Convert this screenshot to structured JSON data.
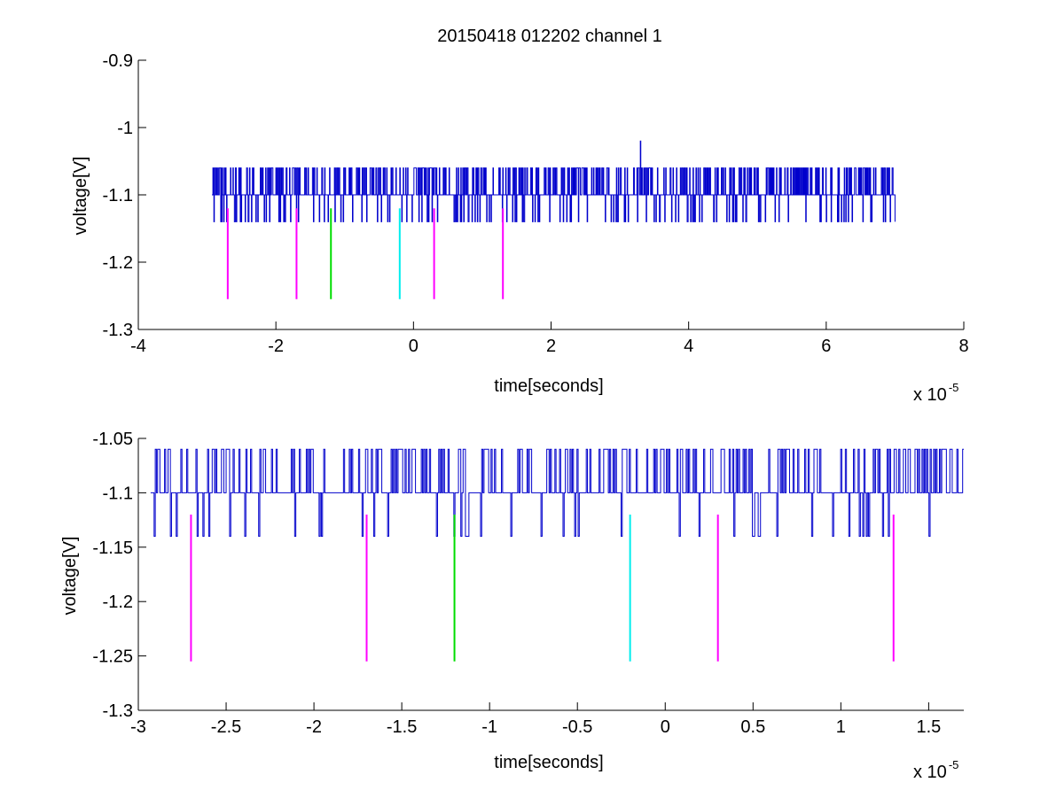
{
  "title": "20150418 012202 channel 1",
  "colors": {
    "trace": "#0000cc",
    "axis": "#000000",
    "magenta": "#ff00ff",
    "green": "#00dd00",
    "cyan": "#00eeee"
  },
  "chart_data": [
    {
      "type": "line",
      "xlabel": "time[seconds]",
      "ylabel": "voltage[V]",
      "xlim": [
        -4,
        8
      ],
      "ylim": [
        -1.3,
        -0.9
      ],
      "x_ticks": [
        -4,
        -2,
        0,
        2,
        4,
        6,
        8
      ],
      "x_tick_labels": [
        "-4",
        "-2",
        "0",
        "2",
        "4",
        "6",
        "8"
      ],
      "y_ticks": [
        -1.3,
        -1.2,
        -1.1,
        -1.0,
        -0.9
      ],
      "y_tick_labels": [
        "-1.3",
        "-1.2",
        "-1.1",
        "-1",
        "-0.9"
      ],
      "x_multiplier": {
        "base": "x 10",
        "exponent": "-5"
      },
      "trace": {
        "x_range": [
          -2.93,
          7.0
        ],
        "baseline": -1.1,
        "levels": [
          -1.06,
          -1.1,
          -1.14
        ],
        "spike": {
          "x": 3.3,
          "y": -1.02
        }
      },
      "markers": [
        {
          "x": -2.7,
          "y_top": -1.12,
          "y_bottom": -1.255,
          "color": "magenta"
        },
        {
          "x": -1.7,
          "y_top": -1.12,
          "y_bottom": -1.255,
          "color": "magenta"
        },
        {
          "x": -1.2,
          "y_top": -1.12,
          "y_bottom": -1.255,
          "color": "green"
        },
        {
          "x": -0.2,
          "y_top": -1.12,
          "y_bottom": -1.255,
          "color": "cyan"
        },
        {
          "x": 0.3,
          "y_top": -1.12,
          "y_bottom": -1.255,
          "color": "magenta"
        },
        {
          "x": 1.3,
          "y_top": -1.12,
          "y_bottom": -1.255,
          "color": "magenta"
        }
      ]
    },
    {
      "type": "line",
      "xlabel": "time[seconds]",
      "ylabel": "voltage[V]",
      "xlim": [
        -3.0,
        1.7
      ],
      "ylim": [
        -1.3,
        -1.05
      ],
      "x_ticks": [
        -3,
        -2.5,
        -2,
        -1.5,
        -1,
        -0.5,
        0,
        0.5,
        1,
        1.5
      ],
      "x_tick_labels": [
        "-3",
        "-2.5",
        "-2",
        "-1.5",
        "-1",
        "-0.5",
        "0",
        "0.5",
        "1",
        "1.5"
      ],
      "y_ticks": [
        -1.3,
        -1.25,
        -1.2,
        -1.15,
        -1.1,
        -1.05
      ],
      "y_tick_labels": [
        "-1.3",
        "-1.25",
        "-1.2",
        "-1.15",
        "-1.1",
        "-1.05"
      ],
      "x_multiplier": {
        "base": "x 10",
        "exponent": "-5"
      },
      "trace": {
        "x_range": [
          -2.93,
          1.7
        ],
        "baseline": -1.1,
        "levels": [
          -1.06,
          -1.1,
          -1.14
        ]
      },
      "markers": [
        {
          "x": -2.7,
          "y_top": -1.12,
          "y_bottom": -1.255,
          "color": "magenta"
        },
        {
          "x": -1.7,
          "y_top": -1.12,
          "y_bottom": -1.255,
          "color": "magenta"
        },
        {
          "x": -1.2,
          "y_top": -1.12,
          "y_bottom": -1.255,
          "color": "green"
        },
        {
          "x": -0.2,
          "y_top": -1.12,
          "y_bottom": -1.255,
          "color": "cyan"
        },
        {
          "x": 0.3,
          "y_top": -1.12,
          "y_bottom": -1.255,
          "color": "magenta"
        },
        {
          "x": 1.3,
          "y_top": -1.12,
          "y_bottom": -1.255,
          "color": "magenta"
        }
      ]
    }
  ]
}
